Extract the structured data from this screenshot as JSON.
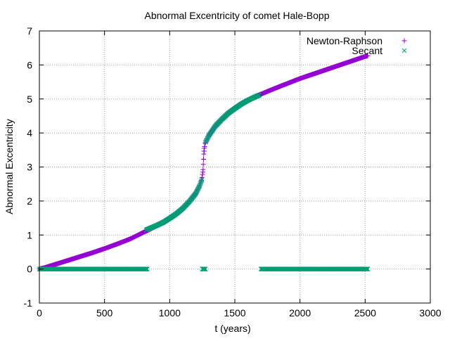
{
  "chart_data": {
    "type": "scatter",
    "title": "Abnormal Excentricity of comet Hale-Bopp",
    "xlabel": "t (years)",
    "ylabel": "Abnormal Excentricity",
    "xlim": [
      0,
      3000
    ],
    "ylim": [
      -1,
      7
    ],
    "xticks": [
      0,
      500,
      1000,
      1500,
      2000,
      2500,
      3000
    ],
    "xtick_labels": [
      "0",
      "500",
      "1000",
      "1500",
      "2000",
      "2500",
      "3000"
    ],
    "yticks": [
      -1,
      0,
      1,
      2,
      3,
      4,
      5,
      6,
      7
    ],
    "ytick_labels": [
      "-1",
      "0",
      "1",
      "2",
      "3",
      "4",
      "5",
      "6",
      "7"
    ],
    "grid": true,
    "legend_position": "top-right",
    "series": [
      {
        "name": "Newton-Raphson",
        "marker": "plus",
        "color": "#9400d3",
        "points": [
          [
            0,
            0.0
          ],
          [
            50,
            0.05
          ],
          [
            100,
            0.11
          ],
          [
            200,
            0.23
          ],
          [
            300,
            0.35
          ],
          [
            400,
            0.47
          ],
          [
            500,
            0.6
          ],
          [
            600,
            0.74
          ],
          [
            700,
            0.89
          ],
          [
            800,
            1.08
          ],
          [
            850,
            1.17
          ],
          [
            900,
            1.27
          ],
          [
            950,
            1.37
          ],
          [
            1000,
            1.49
          ],
          [
            1050,
            1.62
          ],
          [
            1100,
            1.78
          ],
          [
            1150,
            1.98
          ],
          [
            1200,
            2.22
          ],
          [
            1230,
            2.45
          ],
          [
            1245,
            2.62
          ],
          [
            1255,
            2.85
          ],
          [
            1262,
            3.38
          ],
          [
            1266,
            3.55
          ],
          [
            1272,
            3.7
          ],
          [
            1300,
            3.92
          ],
          [
            1350,
            4.2
          ],
          [
            1400,
            4.4
          ],
          [
            1450,
            4.58
          ],
          [
            1500,
            4.72
          ],
          [
            1550,
            4.85
          ],
          [
            1600,
            4.96
          ],
          [
            1650,
            5.06
          ],
          [
            1700,
            5.14
          ],
          [
            1800,
            5.3
          ],
          [
            1900,
            5.45
          ],
          [
            2000,
            5.6
          ],
          [
            2100,
            5.73
          ],
          [
            2200,
            5.86
          ],
          [
            2300,
            5.99
          ],
          [
            2400,
            6.12
          ],
          [
            2500,
            6.25
          ],
          [
            2520,
            6.27
          ]
        ]
      },
      {
        "name": "Secant",
        "marker": "cross",
        "color": "#009e73",
        "points": [
          [
            0,
            0.0
          ],
          [
            20,
            0.02
          ],
          [
            820,
            1.15
          ],
          [
            850,
            1.2
          ],
          [
            900,
            1.28
          ],
          [
            950,
            1.37
          ],
          [
            1000,
            1.49
          ],
          [
            1050,
            1.62
          ],
          [
            1100,
            1.78
          ],
          [
            1150,
            1.98
          ],
          [
            1200,
            2.22
          ],
          [
            1230,
            2.45
          ],
          [
            1250,
            2.65
          ],
          [
            1275,
            3.72
          ],
          [
            1300,
            3.92
          ],
          [
            1350,
            4.2
          ],
          [
            1400,
            4.4
          ],
          [
            1450,
            4.58
          ],
          [
            1500,
            4.72
          ],
          [
            1550,
            4.85
          ],
          [
            1600,
            4.96
          ],
          [
            1650,
            5.05
          ],
          [
            1690,
            5.12
          ]
        ],
        "zero_segments": [
          [
            0,
            830
          ],
          [
            1250,
            1275
          ],
          [
            1700,
            2520
          ]
        ]
      }
    ]
  }
}
